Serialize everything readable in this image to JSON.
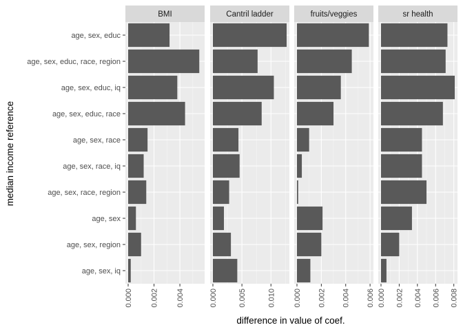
{
  "chart_data": {
    "type": "bar",
    "orientation": "horizontal",
    "xlabel": "difference in value of coef.",
    "ylabel": "median income reference",
    "categories": [
      "age, sex, educ",
      "age, sex, educ, race, region",
      "age, sex, educ, iq",
      "age, sex, educ, race",
      "age, sex, race",
      "age, sex, race, iq",
      "age, sex, race, region",
      "age, sex",
      "age, sex, region",
      "age, sex, iq"
    ],
    "panels": [
      {
        "name": "BMI",
        "xlim": [
          0,
          0.0057
        ],
        "ticks": [
          0,
          0.002,
          0.004
        ],
        "tick_labels": [
          "0.000",
          "0.002",
          "0.004"
        ],
        "values": [
          0.0032,
          0.0055,
          0.0038,
          0.0044,
          0.0015,
          0.0012,
          0.0014,
          0.0006,
          0.001,
          0.0002
        ]
      },
      {
        "name": "Cantril ladder",
        "xlim": [
          0,
          0.0127
        ],
        "ticks": [
          0,
          0.005,
          0.01
        ],
        "tick_labels": [
          "0.000",
          "0.005",
          "0.010"
        ],
        "values": [
          0.0127,
          0.0077,
          0.0105,
          0.0084,
          0.0044,
          0.0046,
          0.0028,
          0.0019,
          0.0031,
          0.0042
        ]
      },
      {
        "name": "fruits/veggies",
        "xlim": [
          0,
          0.00605
        ],
        "ticks": [
          0,
          0.002,
          0.004,
          0.006
        ],
        "tick_labels": [
          "0.000",
          "0.002",
          "0.004",
          "0.006"
        ],
        "values": [
          0.0059,
          0.0045,
          0.0036,
          0.003,
          0.001,
          0.0004,
          0.0001,
          0.0021,
          0.002,
          0.0011
        ]
      },
      {
        "name": "sr health",
        "xlim": [
          0,
          0.0081
        ],
        "ticks": [
          0,
          0.002,
          0.004,
          0.006,
          0.008
        ],
        "tick_labels": [
          "0.000",
          "0.002",
          "0.004",
          "0.006",
          "0.008"
        ],
        "values": [
          0.0073,
          0.0071,
          0.0081,
          0.0068,
          0.0045,
          0.0045,
          0.005,
          0.0034,
          0.002,
          0.0006
        ]
      }
    ],
    "colors": {
      "bar": "#595959",
      "panel_bg": "#ebebeb",
      "strip_bg": "#d9d9d9",
      "grid_major": "#ffffff",
      "text": "#1a1a1a",
      "tick_text": "#4d4d4d"
    },
    "grid": true,
    "legend": "none"
  }
}
